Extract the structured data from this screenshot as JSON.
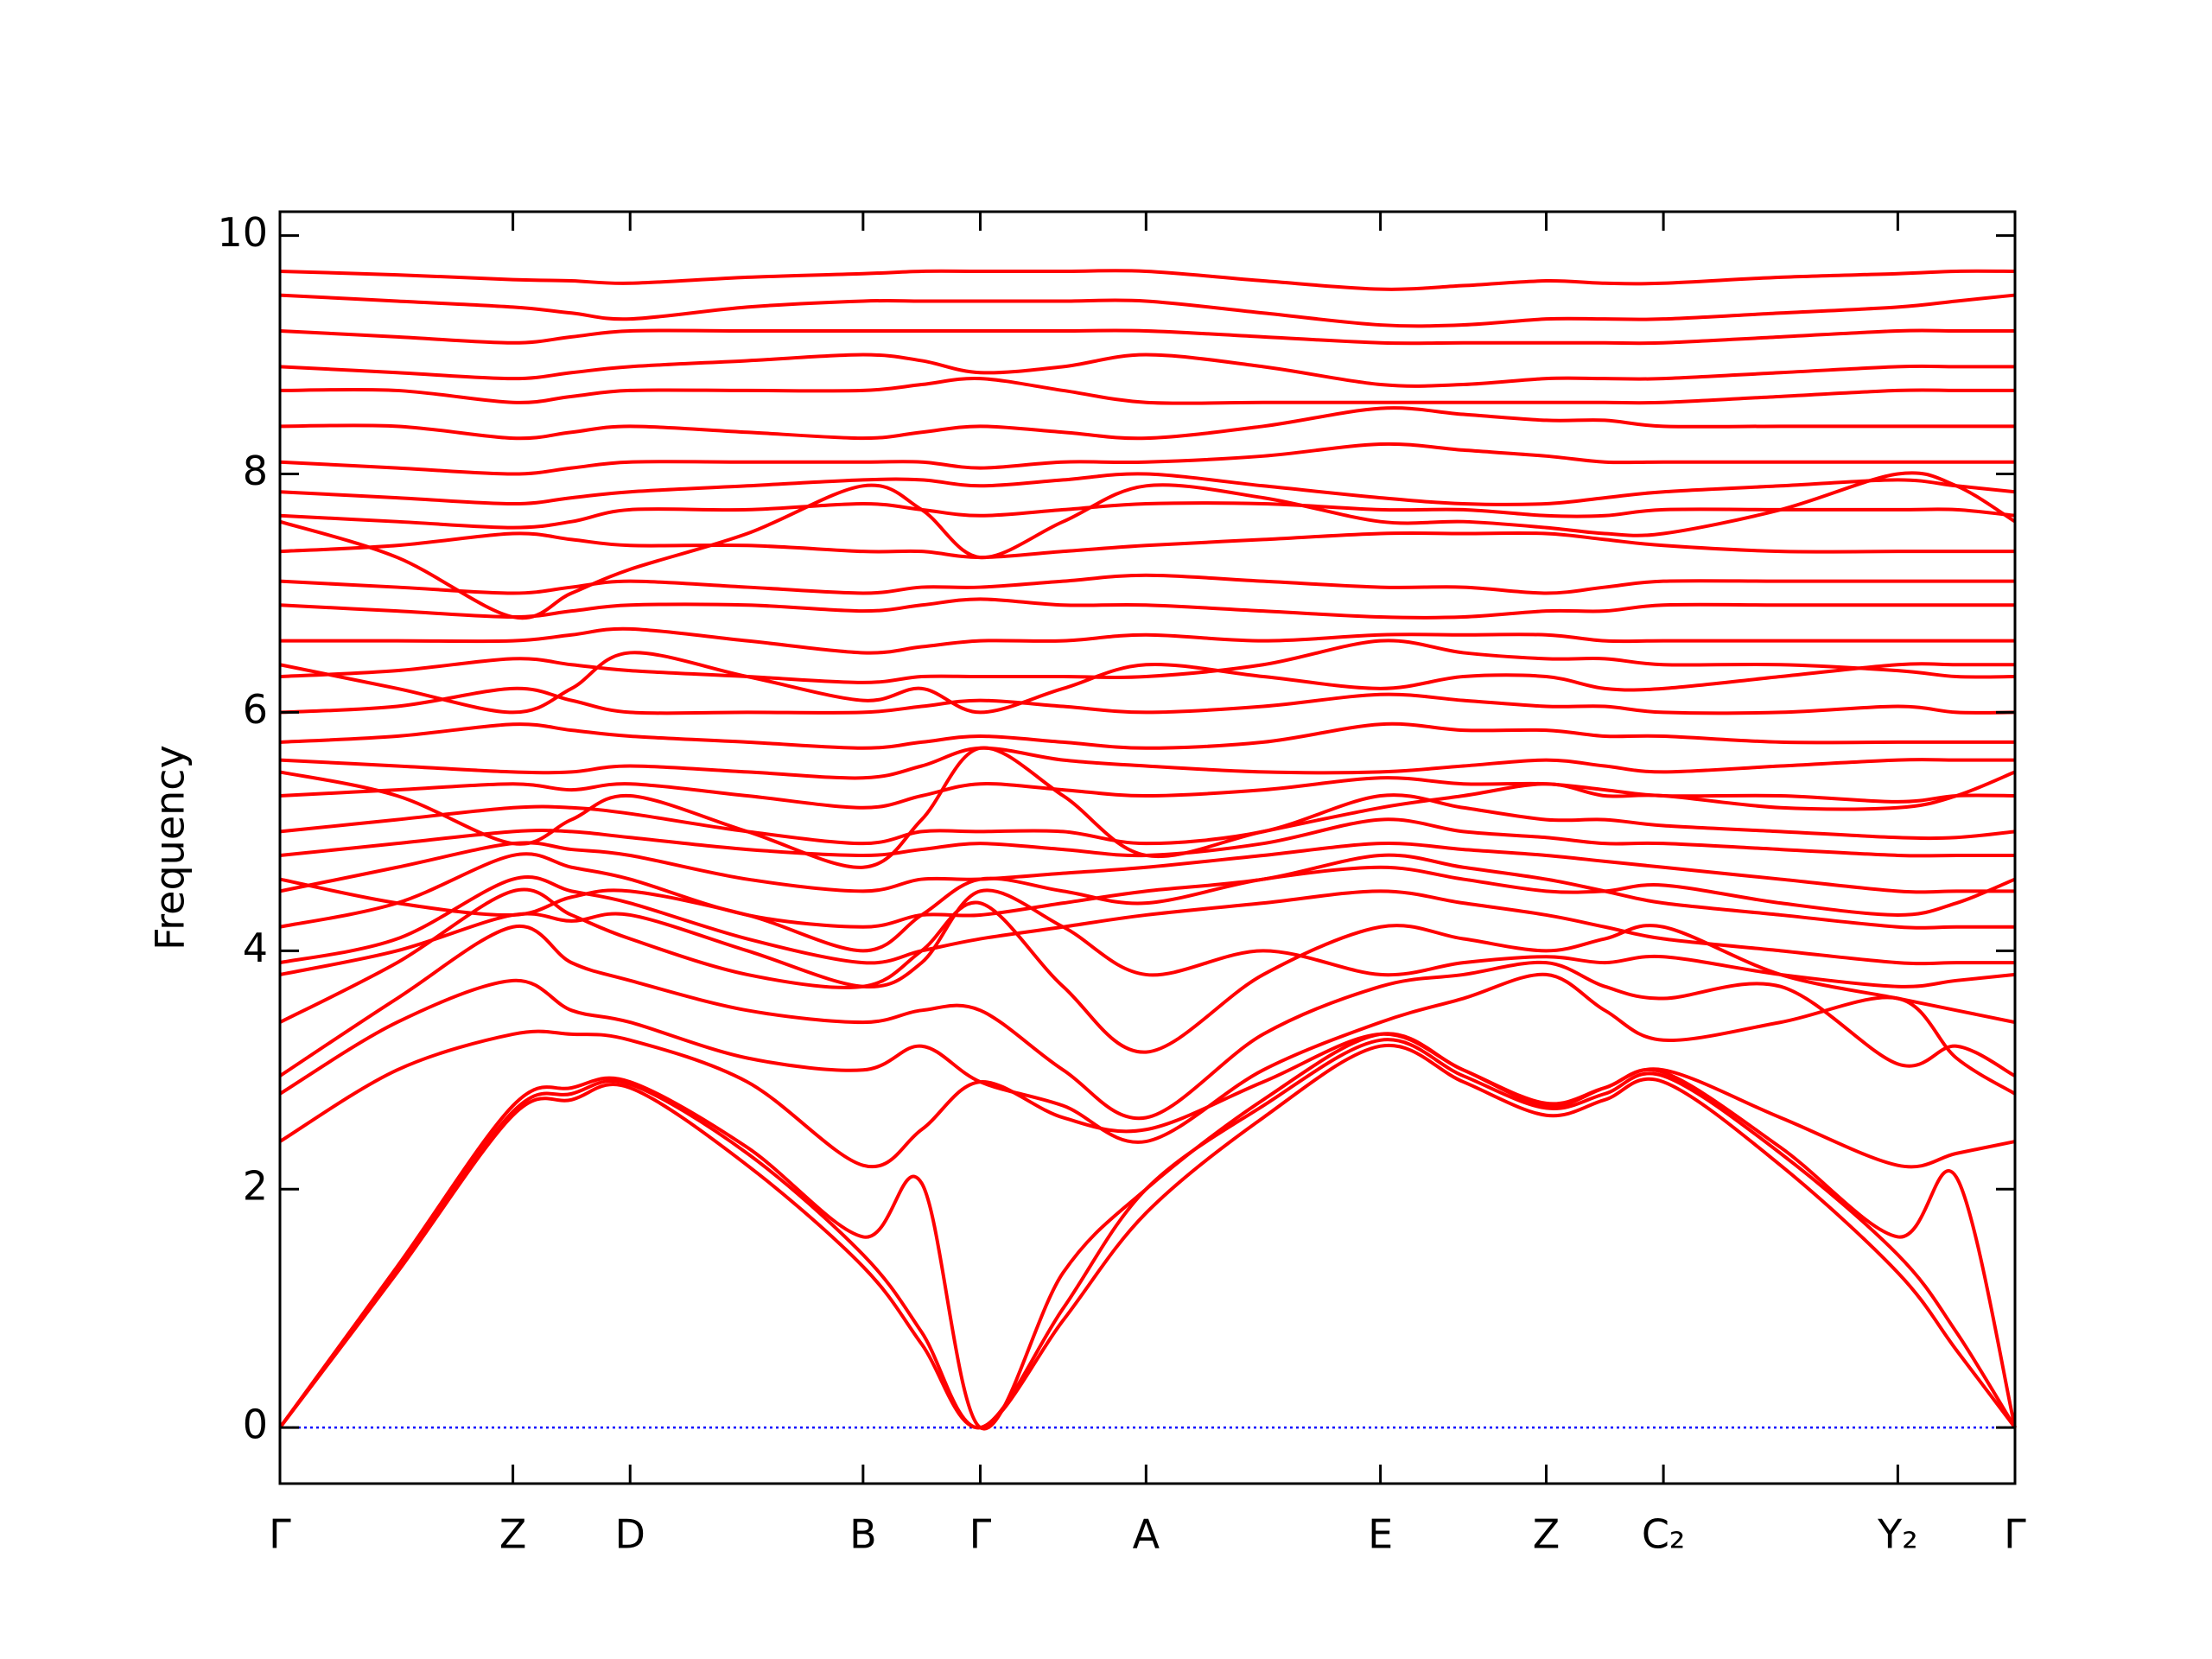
{
  "chart_data": {
    "type": "line",
    "ylabel": "Frequency",
    "color": "#ff0000",
    "x": [
      0,
      0.082,
      0.163,
      0.204,
      0.245,
      0.327,
      0.408,
      0.449,
      0.49,
      0.548,
      0.606,
      0.688,
      0.77,
      0.828,
      0.886,
      0.927,
      0.968,
      1.05,
      1.132,
      1.173,
      1.214
    ],
    "xlim": [
      0,
      1.214
    ],
    "xticks": [
      {
        "value": 0,
        "label": "Γ"
      },
      {
        "value": 0.163,
        "label": "Z"
      },
      {
        "value": 0.245,
        "label": "D"
      },
      {
        "value": 0.408,
        "label": "B"
      },
      {
        "value": 0.49,
        "label": "Γ"
      },
      {
        "value": 0.606,
        "label": "A"
      },
      {
        "value": 0.77,
        "label": "E"
      },
      {
        "value": 0.886,
        "label": "Z"
      },
      {
        "value": 0.968,
        "label": "C₂"
      },
      {
        "value": 1.132,
        "label": "Y₂"
      },
      {
        "value": 1.214,
        "label": "Γ"
      }
    ],
    "ylim": [
      -0.47,
      10.2
    ],
    "yticks": [
      0,
      2,
      4,
      6,
      8,
      10
    ],
    "hlines": [
      {
        "value": 0,
        "color": "#0000ff",
        "style": "dotted"
      }
    ],
    "series": [
      {
        "values": [
          0,
          1.3,
          2.62,
          2.75,
          2.85,
          2.2,
          1.35,
          0.7,
          0,
          0.9,
          1.8,
          2.6,
          3.2,
          2.9,
          2.62,
          2.75,
          2.9,
          2.2,
          1.3,
          0.65,
          0
        ]
      },
      {
        "values": [
          0,
          1.33,
          2.65,
          2.8,
          2.88,
          2.3,
          1.45,
          0.8,
          0,
          1.0,
          2.0,
          2.7,
          3.25,
          2.95,
          2.68,
          2.8,
          2.95,
          2.3,
          1.45,
          0.8,
          0
        ]
      },
      {
        "values": [
          0,
          1.35,
          2.7,
          2.85,
          2.9,
          2.35,
          1.6,
          2.05,
          0,
          1.3,
          2.0,
          2.75,
          3.3,
          3.0,
          2.72,
          2.85,
          2.98,
          2.35,
          1.6,
          2.1,
          0
        ]
      },
      {
        "values": [
          2.4,
          3.0,
          3.3,
          3.3,
          3.25,
          2.9,
          2.2,
          2.5,
          2.9,
          2.6,
          2.5,
          2.9,
          3.3,
          3.0,
          2.7,
          2.85,
          3.0,
          2.6,
          2.2,
          2.3,
          2.4
        ]
      },
      {
        "values": [
          2.8,
          3.4,
          3.75,
          3.5,
          3.4,
          3.1,
          3.0,
          3.2,
          2.9,
          2.7,
          2.4,
          3.0,
          3.4,
          3.6,
          3.8,
          3.5,
          3.25,
          3.4,
          3.6,
          3.1,
          2.8
        ]
      },
      {
        "values": [
          2.95,
          3.6,
          4.2,
          3.9,
          3.75,
          3.5,
          3.4,
          3.5,
          3.5,
          3.0,
          2.6,
          3.3,
          3.7,
          3.8,
          3.9,
          3.7,
          3.6,
          3.7,
          3.05,
          3.2,
          2.95
        ]
      },
      {
        "values": [
          3.4,
          3.9,
          4.5,
          4.3,
          4.1,
          3.8,
          3.7,
          4.0,
          4.4,
          3.7,
          3.15,
          3.8,
          4.2,
          4.1,
          4.0,
          4.1,
          4.2,
          3.8,
          3.6,
          3.5,
          3.4
        ]
      },
      {
        "values": [
          3.9,
          4.1,
          4.6,
          4.5,
          4.4,
          4.1,
          3.9,
          4.0,
          4.1,
          4.2,
          4.3,
          4.4,
          4.5,
          4.4,
          4.3,
          4.2,
          4.1,
          4.0,
          3.9,
          3.9,
          3.9
        ]
      },
      {
        "values": [
          4.2,
          4.4,
          4.8,
          4.7,
          4.6,
          4.3,
          4.2,
          4.3,
          4.3,
          4.4,
          4.5,
          4.6,
          4.8,
          4.7,
          4.6,
          4.5,
          4.4,
          4.3,
          4.2,
          4.2,
          4.2
        ]
      },
      {
        "values": [
          4.5,
          4.7,
          4.9,
          4.85,
          4.8,
          4.6,
          4.5,
          4.6,
          4.6,
          4.65,
          4.7,
          4.8,
          4.9,
          4.85,
          4.8,
          4.75,
          4.7,
          4.6,
          4.5,
          4.5,
          4.5
        ]
      },
      {
        "values": [
          4.8,
          4.9,
          5.0,
          5.0,
          4.95,
          4.85,
          4.8,
          4.85,
          4.9,
          4.85,
          4.8,
          4.9,
          5.1,
          5.0,
          4.95,
          4.9,
          4.9,
          4.85,
          4.8,
          4.8,
          4.8
        ]
      },
      {
        "values": [
          5.0,
          5.1,
          5.2,
          5.2,
          5.15,
          5.0,
          4.9,
          5.0,
          5.0,
          5.0,
          4.9,
          5.0,
          5.3,
          5.2,
          5.1,
          5.1,
          5.05,
          5.0,
          4.95,
          4.95,
          5.0
        ]
      },
      {
        "values": [
          5.3,
          5.35,
          5.4,
          5.35,
          5.4,
          5.3,
          5.2,
          5.3,
          5.4,
          5.35,
          5.3,
          5.35,
          5.45,
          5.4,
          5.4,
          5.35,
          5.3,
          5.3,
          5.25,
          5.3,
          5.3
        ]
      },
      {
        "values": [
          5.6,
          5.55,
          5.5,
          5.5,
          5.55,
          5.5,
          5.45,
          5.55,
          5.7,
          5.6,
          5.55,
          5.5,
          5.5,
          5.55,
          5.6,
          5.55,
          5.5,
          5.55,
          5.6,
          5.6,
          5.6
        ]
      },
      {
        "values": [
          5.75,
          5.8,
          5.9,
          5.85,
          5.8,
          5.75,
          5.7,
          5.75,
          5.8,
          5.75,
          5.7,
          5.75,
          5.9,
          5.85,
          5.85,
          5.8,
          5.8,
          5.75,
          5.75,
          5.75,
          5.75
        ]
      },
      {
        "values": [
          6.0,
          6.05,
          6.2,
          6.1,
          6.0,
          6.0,
          6.0,
          6.05,
          6.1,
          6.05,
          6.0,
          6.05,
          6.15,
          6.1,
          6.05,
          6.05,
          6.0,
          6.0,
          6.05,
          6.0,
          6.0
        ]
      },
      {
        "values": [
          6.3,
          6.35,
          6.45,
          6.4,
          6.35,
          6.3,
          6.25,
          6.3,
          6.3,
          6.3,
          6.3,
          6.4,
          6.6,
          6.5,
          6.45,
          6.45,
          6.4,
          6.4,
          6.35,
          6.3,
          6.3
        ]
      },
      {
        "values": [
          6.6,
          6.6,
          6.6,
          6.65,
          6.7,
          6.6,
          6.5,
          6.55,
          6.6,
          6.6,
          6.65,
          6.6,
          6.65,
          6.65,
          6.65,
          6.6,
          6.6,
          6.6,
          6.6,
          6.6,
          6.6
        ]
      },
      {
        "values": [
          6.9,
          6.85,
          6.8,
          6.85,
          6.9,
          6.9,
          6.85,
          6.9,
          6.95,
          6.9,
          6.9,
          6.85,
          6.8,
          6.8,
          6.85,
          6.85,
          6.9,
          6.9,
          6.9,
          6.9,
          6.9
        ]
      },
      {
        "values": [
          7.1,
          7.05,
          7.0,
          7.05,
          7.1,
          7.05,
          7.0,
          7.05,
          7.05,
          7.1,
          7.15,
          7.1,
          7.05,
          7.05,
          7.0,
          7.05,
          7.1,
          7.1,
          7.1,
          7.1,
          7.1
        ]
      },
      {
        "values": [
          7.35,
          7.4,
          7.5,
          7.45,
          7.4,
          7.4,
          7.35,
          7.35,
          7.3,
          7.35,
          7.4,
          7.45,
          7.5,
          7.5,
          7.5,
          7.45,
          7.4,
          7.35,
          7.35,
          7.35,
          7.35
        ]
      },
      {
        "values": [
          7.65,
          7.6,
          7.55,
          7.6,
          7.7,
          7.7,
          7.75,
          7.7,
          7.65,
          7.7,
          7.75,
          7.75,
          7.7,
          7.7,
          7.65,
          7.65,
          7.7,
          7.7,
          7.7,
          7.7,
          7.65
        ]
      },
      {
        "values": [
          7.85,
          7.8,
          7.75,
          7.8,
          7.85,
          7.9,
          7.95,
          7.95,
          7.9,
          7.95,
          8.0,
          7.9,
          7.8,
          7.75,
          7.75,
          7.8,
          7.85,
          7.9,
          7.95,
          7.9,
          7.85
        ]
      },
      {
        "values": [
          8.1,
          8.05,
          8.0,
          8.05,
          8.1,
          8.1,
          8.1,
          8.1,
          8.05,
          8.1,
          8.1,
          8.15,
          8.25,
          8.2,
          8.15,
          8.1,
          8.1,
          8.1,
          8.1,
          8.1,
          8.1
        ]
      },
      {
        "values": [
          8.4,
          8.4,
          8.3,
          8.35,
          8.4,
          8.35,
          8.3,
          8.35,
          8.4,
          8.35,
          8.3,
          8.4,
          8.55,
          8.5,
          8.45,
          8.45,
          8.4,
          8.4,
          8.4,
          8.4,
          8.4
        ]
      },
      {
        "values": [
          8.7,
          8.7,
          8.6,
          8.65,
          8.7,
          8.7,
          8.7,
          8.75,
          8.8,
          8.7,
          8.6,
          8.6,
          8.6,
          8.6,
          8.6,
          8.6,
          8.6,
          8.65,
          8.7,
          8.7,
          8.7
        ]
      },
      {
        "values": [
          8.9,
          8.85,
          8.8,
          8.85,
          8.9,
          8.95,
          9.0,
          8.95,
          8.85,
          8.9,
          9.0,
          8.9,
          8.75,
          8.75,
          8.8,
          8.8,
          8.8,
          8.85,
          8.9,
          8.9,
          8.9
        ]
      },
      {
        "values": [
          9.2,
          9.15,
          9.1,
          9.15,
          9.2,
          9.2,
          9.2,
          9.2,
          9.2,
          9.2,
          9.2,
          9.15,
          9.1,
          9.1,
          9.1,
          9.1,
          9.1,
          9.15,
          9.2,
          9.2,
          9.2
        ]
      },
      {
        "values": [
          9.5,
          9.45,
          9.4,
          9.35,
          9.3,
          9.4,
          9.45,
          9.45,
          9.45,
          9.45,
          9.45,
          9.35,
          9.25,
          9.25,
          9.3,
          9.3,
          9.3,
          9.35,
          9.4,
          9.45,
          9.5
        ]
      },
      {
        "values": [
          9.7,
          9.67,
          9.63,
          9.62,
          9.6,
          9.65,
          9.68,
          9.7,
          9.7,
          9.7,
          9.7,
          9.62,
          9.55,
          9.58,
          9.62,
          9.6,
          9.6,
          9.65,
          9.68,
          9.7,
          9.7
        ]
      },
      {
        "values": [
          3.8,
          4.0,
          4.3,
          4.25,
          4.3,
          4.0,
          3.7,
          3.9,
          4.5,
          4.2,
          3.8,
          4.0,
          3.8,
          3.9,
          3.95,
          3.9,
          3.95,
          3.8,
          3.7,
          3.75,
          3.8
        ]
      },
      {
        "values": [
          5.5,
          5.3,
          4.9,
          5.1,
          5.3,
          5.0,
          4.7,
          5.1,
          5.7,
          5.3,
          4.8,
          5.0,
          5.2,
          5.3,
          5.4,
          5.3,
          5.3,
          5.2,
          5.2,
          5.3,
          5.5
        ]
      },
      {
        "values": [
          7.6,
          7.3,
          6.8,
          7.0,
          7.2,
          7.5,
          7.9,
          7.7,
          7.3,
          7.6,
          7.9,
          7.8,
          7.6,
          7.6,
          7.55,
          7.5,
          7.5,
          7.7,
          8.0,
          7.9,
          7.6
        ]
      },
      {
        "values": [
          6.4,
          6.2,
          6.0,
          6.2,
          6.5,
          6.3,
          6.1,
          6.2,
          6.0,
          6.2,
          6.4,
          6.3,
          6.2,
          6.3,
          6.3,
          6.2,
          6.2,
          6.3,
          6.4,
          6.4,
          6.4
        ]
      },
      {
        "values": [
          4.6,
          4.4,
          4.3,
          4.45,
          4.5,
          4.3,
          4.0,
          4.3,
          4.6,
          4.5,
          4.4,
          4.6,
          4.7,
          4.6,
          4.5,
          4.5,
          4.55,
          4.4,
          4.3,
          4.4,
          4.6
        ]
      }
    ]
  }
}
